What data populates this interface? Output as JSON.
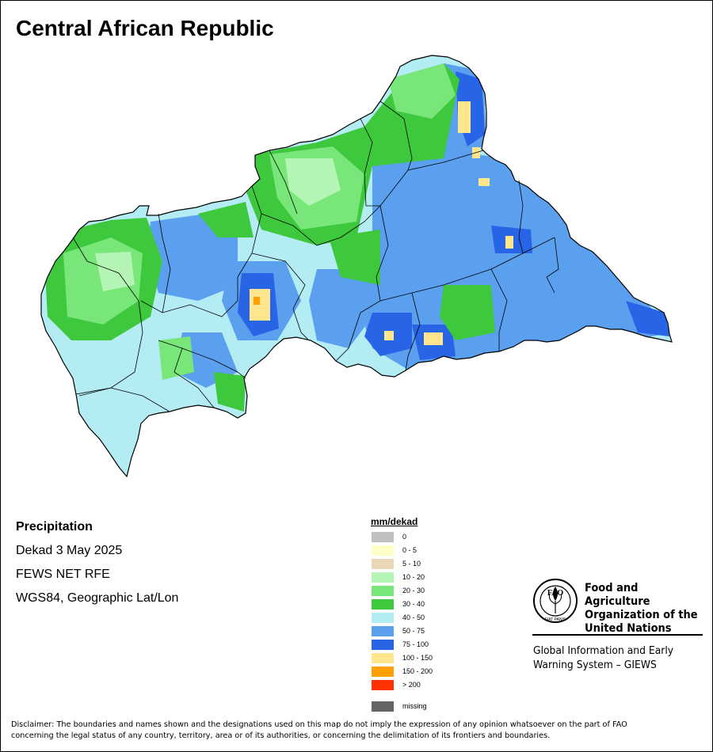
{
  "title": "Central African Republic",
  "info": {
    "variable": "Precipitation",
    "period": "Dekad 3 May 2025",
    "source": "FEWS NET RFE",
    "projection": "WGS84, Geographic Lat/Lon"
  },
  "legend": {
    "title": "mm/dekad",
    "classes": [
      {
        "label": "0",
        "color": "#c0c0c0"
      },
      {
        "label": "0 - 5",
        "color": "#ffffc8"
      },
      {
        "label": "5 - 10",
        "color": "#e8d8b8"
      },
      {
        "label": "10 - 20",
        "color": "#b4f4b4"
      },
      {
        "label": "20 - 30",
        "color": "#78e678"
      },
      {
        "label": "30 - 40",
        "color": "#3ec83e"
      },
      {
        "label": "40 - 50",
        "color": "#b4ecf4"
      },
      {
        "label": "50 - 75",
        "color": "#5aa0ee"
      },
      {
        "label": "75 - 100",
        "color": "#2864e6"
      },
      {
        "label": "100 - 150",
        "color": "#ffe68c"
      },
      {
        "label": "150 - 200",
        "color": "#ffa000"
      },
      {
        "label": "> 200",
        "color": "#ff3200"
      }
    ],
    "missing": {
      "label": "missing",
      "color": "#646464"
    }
  },
  "organization": {
    "name_line1": "Food and Agriculture",
    "name_line2": "Organization of the",
    "name_line3": "United Nations",
    "program_line1": "Global Information and Early",
    "program_line2": "Warning System – GIEWS",
    "logo_text": "FAO",
    "logo_motto": "FIAT PANIS"
  },
  "disclaimer_line1": "Disclaimer: The boundaries and names shown and the designations used on this map do not imply the expression of any opinion whatsoever on the part of FAO",
  "disclaimer_line2": "concerning the legal status of any country, territory, area or of its authorities, or concerning the delimitation of its frontiers and boundaries."
}
